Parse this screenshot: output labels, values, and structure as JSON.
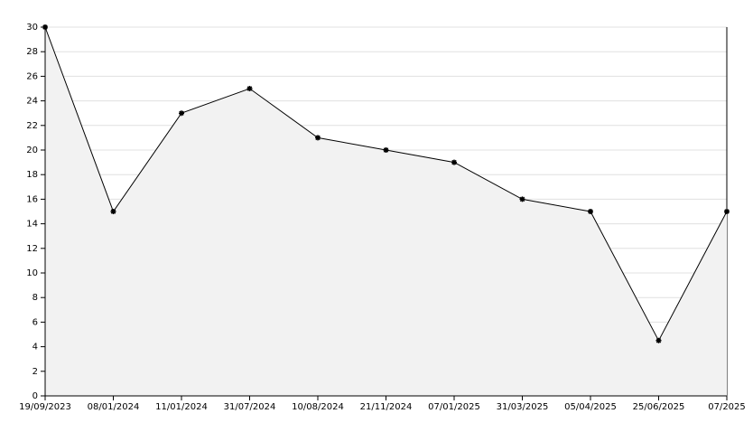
{
  "chart_data": {
    "type": "area",
    "categories": [
      "19/09/2023",
      "08/01/2024",
      "11/01/2024",
      "31/07/2024",
      "10/08/2024",
      "21/11/2024",
      "07/01/2025",
      "31/03/2025",
      "05/04/2025",
      "25/06/2025",
      "07/2025"
    ],
    "values": [
      30,
      15,
      23,
      25,
      21,
      20,
      19,
      16,
      15,
      4.5,
      15
    ],
    "color": "#000000",
    "fill": "#f2f2f2",
    "ylim": [
      0,
      30
    ],
    "yticks": [
      0,
      2,
      4,
      6,
      8,
      10,
      12,
      14,
      16,
      18,
      20,
      22,
      24,
      26,
      28,
      30
    ],
    "grid": true
  }
}
